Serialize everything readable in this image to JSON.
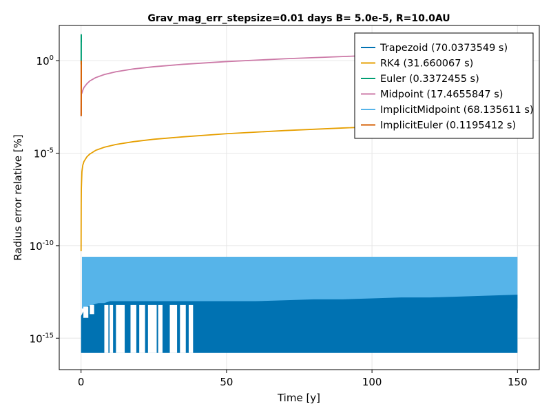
{
  "chart_data": {
    "type": "line",
    "title": "Grav_mag_err_stepsize=0.01 days B= 5.0e-5, R=10.0AU",
    "xlabel": "Time [y]",
    "ylabel": "Radius error relative [%]",
    "xlim": [
      -7.5,
      157.5
    ],
    "ylim_log10": [
      -16.7,
      1.9
    ],
    "y_scale": "log",
    "x_ticks": [
      0,
      50,
      100,
      150
    ],
    "y_ticks": [
      {
        "base": "10",
        "exp": "0",
        "log": 0
      },
      {
        "base": "10",
        "exp": "-5",
        "log": -5
      },
      {
        "base": "10",
        "exp": "-10",
        "log": -10
      },
      {
        "base": "10",
        "exp": "-15",
        "log": -15
      }
    ],
    "grid": true,
    "legend_position": "top-right",
    "series": [
      {
        "name": "Trapezoid (70.0373549 s)",
        "color": "#0072b2"
      },
      {
        "name": "RK4 (31.660067 s)",
        "color": "#e69f00"
      },
      {
        "name": "Euler (0.3372455 s)",
        "color": "#009e73"
      },
      {
        "name": "Midpoint (17.4655847 s)",
        "color": "#cc79a7"
      },
      {
        "name": "ImplicitMidpoint (68.135611 s)",
        "color": "#56b4e9"
      },
      {
        "name": "ImplicitEuler (0.1195412 s)",
        "color": "#d55e00"
      }
    ],
    "curves": {
      "rk4": {
        "x": [
          0.01,
          0.05,
          0.1,
          0.3,
          0.6,
          1,
          2,
          3,
          5,
          8,
          12,
          18,
          25,
          35,
          50,
          70,
          90,
          110,
          130,
          150
        ],
        "log_y": [
          -10.3,
          -7.7,
          -6.9,
          -6.0,
          -5.65,
          -5.45,
          -5.2,
          -5.05,
          -4.85,
          -4.68,
          -4.53,
          -4.38,
          -4.25,
          -4.12,
          -3.95,
          -3.78,
          -3.64,
          -3.52,
          -3.42,
          -3.33
        ]
      },
      "midpoint": {
        "x": [
          0.01,
          0.05,
          0.1,
          0.3,
          0.6,
          1,
          2,
          3,
          5,
          8,
          12,
          18,
          25,
          35,
          50,
          70,
          90,
          110,
          130,
          150
        ],
        "log_y": [
          -3.0,
          -2.0,
          -1.8,
          -1.75,
          -1.6,
          -1.45,
          -1.25,
          -1.1,
          -0.92,
          -0.75,
          -0.6,
          -0.45,
          -0.33,
          -0.2,
          -0.05,
          0.1,
          0.22,
          0.35,
          0.45,
          0.55
        ]
      },
      "euler": {
        "x": [
          0.05,
          0.06,
          0.07,
          0.08
        ],
        "log_y": [
          -0.2,
          1.0,
          1.4,
          1.0
        ]
      },
      "implicit_euler": {
        "x": [
          0.05,
          0.06,
          0.07
        ],
        "log_y": [
          -3.0,
          -1.5,
          0.0
        ]
      },
      "implicit_midpoint_band": {
        "x": [
          0.3,
          150
        ],
        "log_y_top": -10.6,
        "log_y_bottom": -13.4
      },
      "trapezoid_band": {
        "log_y_bottom": -15.8,
        "top_x": [
          0,
          1,
          2,
          4,
          6,
          8,
          10,
          15,
          20,
          25,
          30,
          35,
          40,
          50,
          60,
          70,
          80,
          90,
          100,
          110,
          120,
          130,
          140,
          150
        ],
        "top_log_y": [
          -13.8,
          -13.5,
          -13.3,
          -13.2,
          -13.1,
          -13.1,
          -13.0,
          -13.0,
          -13.0,
          -13.0,
          -13.0,
          -13.0,
          -13.0,
          -13.0,
          -13.0,
          -12.95,
          -12.9,
          -12.9,
          -12.85,
          -12.8,
          -12.8,
          -12.75,
          -12.7,
          -12.65
        ]
      }
    }
  }
}
